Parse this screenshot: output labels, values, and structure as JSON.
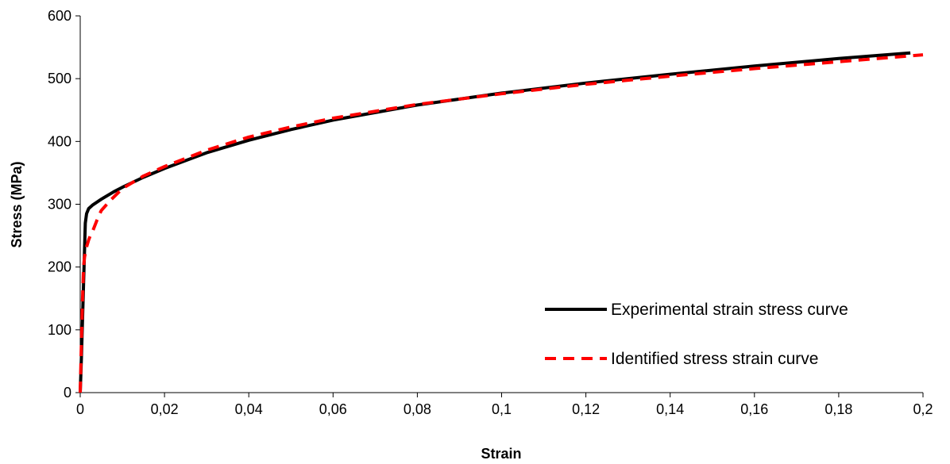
{
  "chart_data": {
    "type": "line",
    "title": "",
    "xlabel": "Strain",
    "ylabel": "Stress (MPa)",
    "xlim": [
      0,
      0.2
    ],
    "ylim": [
      0,
      600
    ],
    "x_ticks": [
      "0",
      "0,02",
      "0,04",
      "0,06",
      "0,08",
      "0,1",
      "0,12",
      "0,14",
      "0,16",
      "0,18",
      "0,2"
    ],
    "y_ticks": [
      "0",
      "100",
      "200",
      "300",
      "400",
      "500",
      "600"
    ],
    "grid": false,
    "legend_position": "bottom-right",
    "series": [
      {
        "name": "Experimental strain stress curve",
        "color": "#000000",
        "style": "solid",
        "x": [
          0,
          0.0003,
          0.0006,
          0.0009,
          0.0012,
          0.0015,
          0.002,
          0.003,
          0.005,
          0.008,
          0.01,
          0.015,
          0.02,
          0.03,
          0.04,
          0.05,
          0.06,
          0.08,
          0.1,
          0.12,
          0.14,
          0.16,
          0.18,
          0.197
        ],
        "y": [
          0,
          60,
          130,
          200,
          270,
          285,
          293,
          299,
          308,
          320,
          327,
          343,
          357,
          382,
          402,
          419,
          434,
          458,
          477,
          493,
          507,
          520,
          532,
          541
        ]
      },
      {
        "name": "Identified stress strain curve",
        "color": "#ff0000",
        "style": "dashed",
        "x": [
          0,
          0.0002,
          0.0005,
          0.0008,
          0.001,
          0.0015,
          0.002,
          0.0025,
          0.003,
          0.004,
          0.005,
          0.007,
          0.01,
          0.015,
          0.02,
          0.03,
          0.04,
          0.05,
          0.06,
          0.08,
          0.1,
          0.12,
          0.14,
          0.16,
          0.18,
          0.2
        ],
        "y": [
          0,
          60,
          140,
          200,
          215,
          232,
          243,
          252,
          258,
          275,
          290,
          305,
          325,
          345,
          360,
          386,
          407,
          423,
          437,
          459,
          476,
          491,
          504,
          516,
          527,
          538
        ]
      }
    ]
  }
}
